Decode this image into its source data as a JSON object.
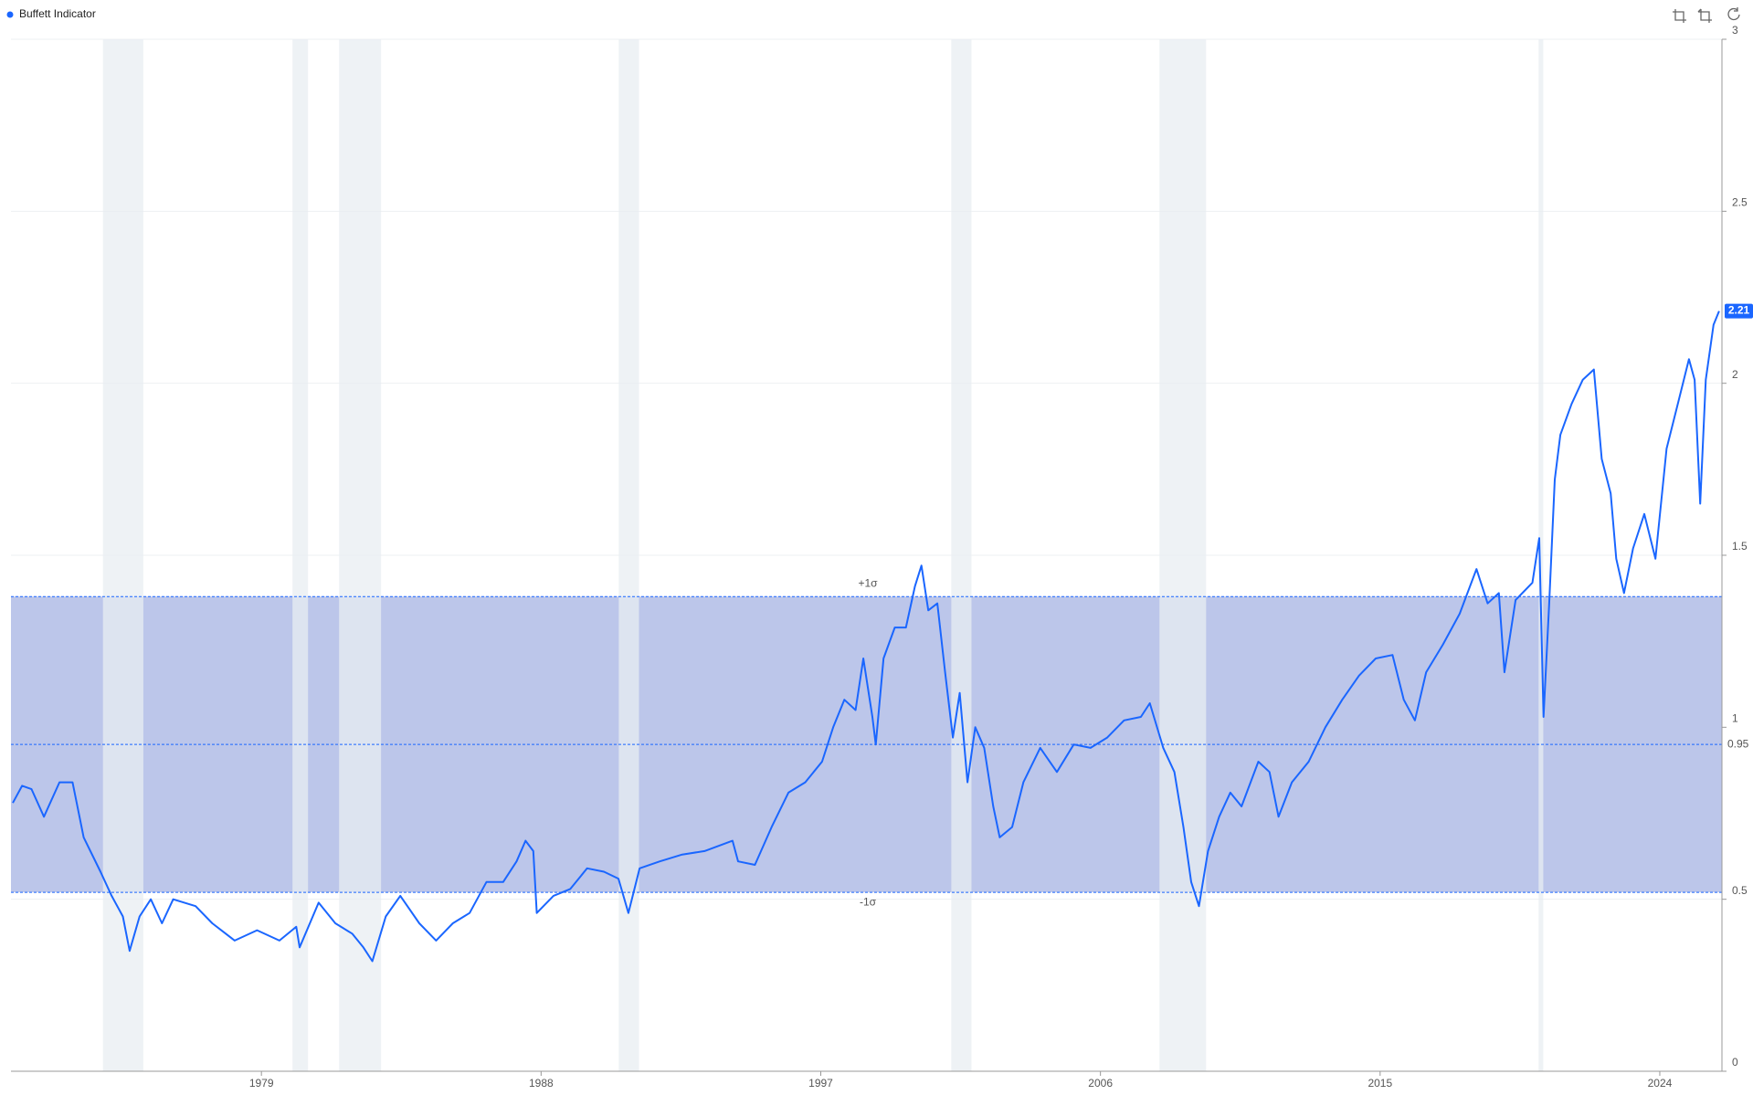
{
  "chart_data": {
    "type": "line",
    "title": "Buffett Indicator",
    "x": [
      1971.0,
      1971.3,
      1971.6,
      1972.0,
      1972.5,
      1972.92,
      1973.28,
      1973.82,
      1974.18,
      1974.54,
      1974.76,
      1975.08,
      1975.44,
      1975.8,
      1976.16,
      1976.88,
      1977.42,
      1978.14,
      1978.86,
      1979.58,
      1980.12,
      1980.23,
      1980.84,
      1981.38,
      1981.92,
      1982.28,
      1982.57,
      1983.0,
      1983.47,
      1984.08,
      1984.62,
      1985.16,
      1985.7,
      1986.24,
      1986.78,
      1987.21,
      1987.5,
      1987.75,
      1987.86,
      1988.4,
      1988.94,
      1989.48,
      1990.02,
      1990.49,
      1990.81,
      1991.17,
      1991.82,
      1992.54,
      1993.26,
      1994.16,
      1994.34,
      1994.88,
      1995.42,
      1995.96,
      1996.5,
      1997.04,
      1997.4,
      1997.76,
      1998.12,
      1998.37,
      1998.66,
      1998.77,
      1999.02,
      1999.38,
      1999.74,
      2000.03,
      2000.24,
      2000.46,
      2000.75,
      2001.0,
      2001.25,
      2001.47,
      2001.72,
      2001.97,
      2002.26,
      2002.55,
      2002.76,
      2003.16,
      2003.52,
      2004.06,
      2004.6,
      2005.14,
      2005.68,
      2006.22,
      2006.76,
      2007.3,
      2007.59,
      2008.02,
      2008.38,
      2008.67,
      2008.92,
      2009.17,
      2009.46,
      2009.82,
      2010.18,
      2010.54,
      2011.08,
      2011.44,
      2011.73,
      2012.16,
      2012.7,
      2013.24,
      2013.78,
      2014.32,
      2014.86,
      2015.4,
      2015.76,
      2016.12,
      2016.48,
      2017.02,
      2017.56,
      2018.1,
      2018.46,
      2018.82,
      2019.0,
      2019.36,
      2019.9,
      2020.12,
      2020.26,
      2020.44,
      2020.62,
      2020.8,
      2021.16,
      2021.52,
      2021.88,
      2022.13,
      2022.42,
      2022.6,
      2022.85,
      2023.14,
      2023.5,
      2023.86,
      2024.22,
      2024.58,
      2024.94,
      2025.12,
      2025.3,
      2025.48,
      2025.73,
      2025.91
    ],
    "series": [
      {
        "name": "Buffett Indicator",
        "color": "#1a66ff",
        "values": [
          0.78,
          0.83,
          0.82,
          0.74,
          0.84,
          0.84,
          0.68,
          0.58,
          0.51,
          0.45,
          0.35,
          0.45,
          0.5,
          0.43,
          0.5,
          0.48,
          0.43,
          0.38,
          0.41,
          0.38,
          0.42,
          0.36,
          0.49,
          0.43,
          0.4,
          0.36,
          0.32,
          0.45,
          0.51,
          0.43,
          0.38,
          0.43,
          0.46,
          0.55,
          0.55,
          0.61,
          0.67,
          0.64,
          0.46,
          0.51,
          0.53,
          0.59,
          0.58,
          0.56,
          0.46,
          0.59,
          0.61,
          0.63,
          0.64,
          0.67,
          0.61,
          0.6,
          0.71,
          0.81,
          0.84,
          0.9,
          1.0,
          1.08,
          1.05,
          1.2,
          1.03,
          0.95,
          1.2,
          1.29,
          1.29,
          1.41,
          1.47,
          1.34,
          1.36,
          1.16,
          0.97,
          1.1,
          0.84,
          1.0,
          0.94,
          0.77,
          0.68,
          0.71,
          0.84,
          0.94,
          0.87,
          0.95,
          0.94,
          0.97,
          1.02,
          1.03,
          1.07,
          0.94,
          0.87,
          0.71,
          0.55,
          0.48,
          0.64,
          0.74,
          0.81,
          0.77,
          0.9,
          0.87,
          0.74,
          0.84,
          0.9,
          1.0,
          1.08,
          1.15,
          1.2,
          1.21,
          1.08,
          1.02,
          1.16,
          1.24,
          1.33,
          1.46,
          1.36,
          1.39,
          1.16,
          1.37,
          1.42,
          1.55,
          1.03,
          1.36,
          1.72,
          1.85,
          1.94,
          2.01,
          2.04,
          1.78,
          1.68,
          1.49,
          1.39,
          1.52,
          1.62,
          1.49,
          1.81,
          1.94,
          2.07,
          2.01,
          1.65,
          2.01,
          2.17,
          2.21
        ]
      }
    ],
    "xlim": [
      1970.94,
      2026.0
    ],
    "xticks": [
      1979,
      1988,
      1997,
      2006,
      2015,
      2024
    ],
    "ylim": [
      0,
      3
    ],
    "yticks": [
      0,
      0.5,
      1,
      1.5,
      2,
      2.5,
      3
    ],
    "grid": true,
    "reference_lines": [
      {
        "label": "+1σ",
        "value": 1.38
      },
      {
        "value": 0.95
      },
      {
        "label": "-1σ",
        "value": 0.52
      }
    ],
    "band_color": "#bcc6ea",
    "recession_color": "#e8edf2",
    "recessions": [
      [
        1973.9,
        1975.2
      ],
      [
        1980.0,
        1980.5
      ],
      [
        1981.5,
        1982.85
      ],
      [
        1990.5,
        1991.15
      ],
      [
        2001.2,
        2001.85
      ],
      [
        2007.9,
        2009.4
      ],
      [
        2020.1,
        2020.25
      ]
    ]
  }
}
